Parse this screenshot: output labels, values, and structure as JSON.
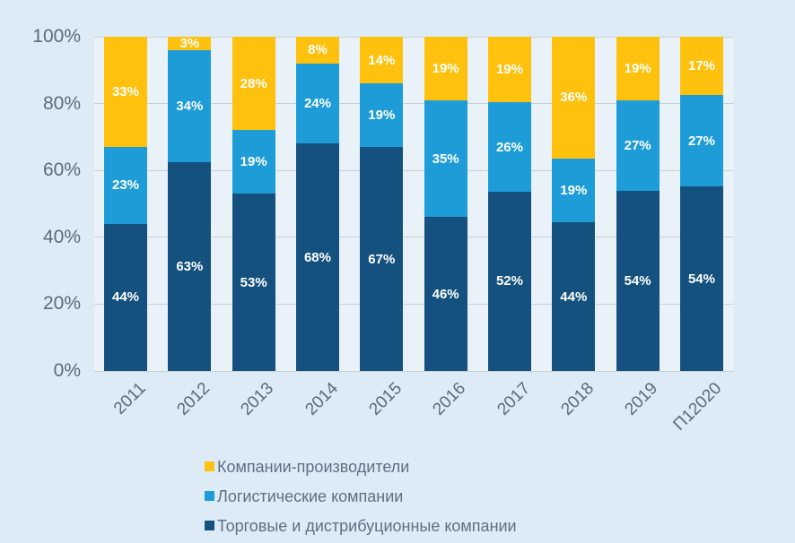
{
  "colors": {
    "page_background": "#DCEBF6",
    "plot_background": "#EAF2F9",
    "gridline": "#C9D0D6",
    "axis_text": "#5C6B7A",
    "legend_text": "#5E7081",
    "data_label_text": "#FFFFFF"
  },
  "chart_data": {
    "type": "bar",
    "stacked": true,
    "normalized_100_percent": true,
    "title": "",
    "xlabel": "",
    "ylabel": "",
    "categories": [
      "2011",
      "2012",
      "2013",
      "2014",
      "2015",
      "2016",
      "2017",
      "2018",
      "2019",
      "П12020"
    ],
    "series": [
      {
        "name": "Торговые и дистрибуционные компании",
        "color": "#15517E",
        "values": [
          44,
          63,
          53,
          68,
          67,
          46,
          52,
          44,
          54,
          54
        ]
      },
      {
        "name": "Логистические компании",
        "color": "#1E9CD7",
        "values": [
          23,
          34,
          19,
          24,
          19,
          35,
          26,
          19,
          27,
          27
        ]
      },
      {
        "name": "Компании-производители",
        "color": "#FEC10D",
        "values": [
          33,
          3,
          28,
          8,
          14,
          19,
          19,
          36,
          19,
          17
        ]
      }
    ],
    "data_label_suffix": "%",
    "y_ticks": [
      {
        "value": 0,
        "label": "0%"
      },
      {
        "value": 20,
        "label": "20%"
      },
      {
        "value": 40,
        "label": "40%"
      },
      {
        "value": 60,
        "label": "60%"
      },
      {
        "value": 80,
        "label": "80%"
      },
      {
        "value": 100,
        "label": "100%"
      }
    ],
    "ylim": [
      0,
      100
    ],
    "grid": true,
    "legend_position": "bottom"
  },
  "legend": {
    "items": [
      {
        "label": "Компании-производители",
        "color": "#FEC10D"
      },
      {
        "label": "Логистические компании",
        "color": "#1E9CD7"
      },
      {
        "label": "Торговые и дистрибуционные компании",
        "color": "#15517E"
      }
    ]
  }
}
